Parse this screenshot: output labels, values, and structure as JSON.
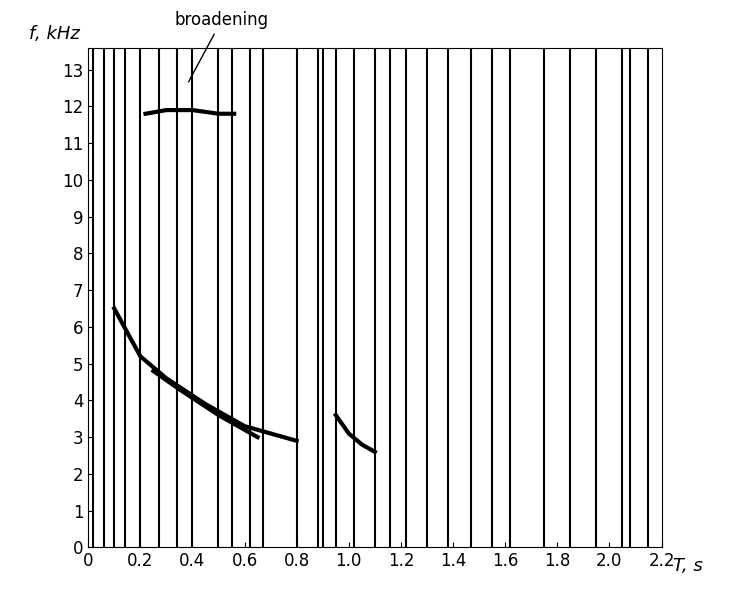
{
  "chart_data": {
    "type": "spectrogram",
    "x_label": "T, s",
    "y_label": "f, kHz",
    "xlim": [
      0,
      2.2
    ],
    "ylim": [
      0,
      13.6
    ],
    "xticks": [
      0,
      0.2,
      0.4,
      0.6,
      0.8,
      {
        "value": 1,
        "label": "1.0"
      },
      1.2,
      1.4,
      1.6,
      1.8,
      {
        "value": 2,
        "label": "2.0"
      },
      2.2
    ],
    "yticks": [
      0,
      1,
      2,
      3,
      4,
      5,
      6,
      7,
      8,
      9,
      10,
      11,
      12,
      13
    ],
    "grid": false,
    "annotation": {
      "text": "broadening",
      "x": 0.38,
      "y": 12.6
    },
    "impulse_times": [
      0.02,
      0.06,
      0.1,
      0.14,
      0.2,
      0.27,
      0.34,
      0.4,
      0.5,
      0.55,
      0.62,
      0.67,
      0.8,
      0.88,
      0.9,
      0.95,
      1.02,
      1.1,
      1.16,
      1.22,
      1.3,
      1.38,
      1.47,
      1.55,
      1.62,
      1.75,
      1.85,
      1.95,
      2.05,
      2.08,
      2.15
    ],
    "color": "#000000",
    "series": [
      {
        "type": "line",
        "color": "#000000",
        "x": [
          0.22,
          0.3,
          0.4,
          0.5,
          0.56
        ],
        "values": [
          11.8,
          11.9,
          11.9,
          11.8,
          11.8
        ]
      },
      {
        "type": "line",
        "color": "#000000",
        "x": [
          0.1,
          0.2,
          0.3,
          0.45,
          0.6,
          0.8
        ],
        "values": [
          6.5,
          5.2,
          4.6,
          3.9,
          3.3,
          2.9
        ]
      },
      {
        "type": "line",
        "color": "#000000",
        "x": [
          0.25,
          0.35,
          0.5,
          0.65
        ],
        "values": [
          4.8,
          4.3,
          3.6,
          3.0
        ]
      },
      {
        "type": "line",
        "color": "#000000",
        "x": [
          0.95,
          1.0,
          1.05,
          1.1
        ],
        "values": [
          3.6,
          3.1,
          2.8,
          2.6
        ]
      }
    ]
  }
}
